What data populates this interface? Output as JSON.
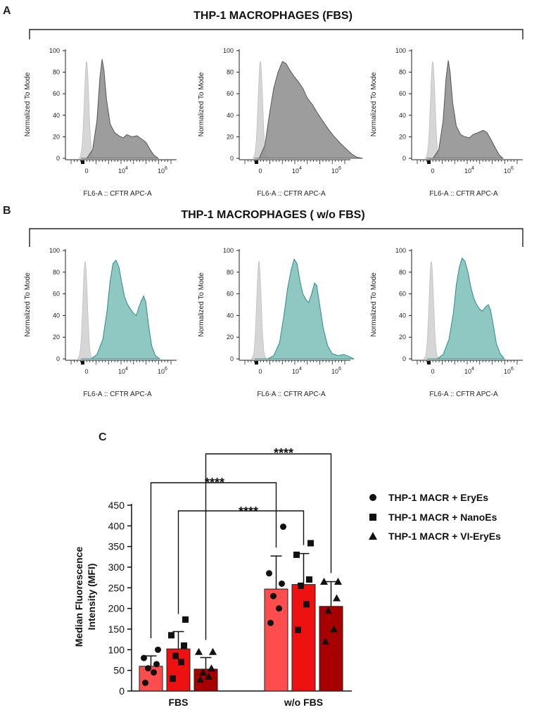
{
  "panels": {
    "A": {
      "label": "A",
      "title": "THP-1 MACROPHAGES (FBS)",
      "fill_color": "#8c8c8c",
      "stroke_color": "#555555",
      "histograms": [
        {
          "id": "a1",
          "peak_pos": 0.5,
          "profile": [
            [
              0,
              0
            ],
            [
              0.8,
              0
            ],
            [
              1.6,
              8
            ],
            [
              2.2,
              35
            ],
            [
              2.6,
              75
            ],
            [
              2.9,
              92
            ],
            [
              3.15,
              82
            ],
            [
              3.5,
              55
            ],
            [
              4.0,
              32
            ],
            [
              4.6,
              24
            ],
            [
              5.2,
              21
            ],
            [
              5.8,
              19
            ],
            [
              6.3,
              22
            ],
            [
              7.0,
              20
            ],
            [
              7.7,
              21
            ],
            [
              8.3,
              18
            ],
            [
              8.9,
              15
            ],
            [
              9.5,
              8
            ],
            [
              10.0,
              3
            ],
            [
              10.6,
              0
            ]
          ]
        },
        {
          "id": "a2",
          "peak_pos": 0.5,
          "profile": [
            [
              0,
              0
            ],
            [
              0.6,
              0
            ],
            [
              1.4,
              12
            ],
            [
              2.0,
              40
            ],
            [
              2.6,
              65
            ],
            [
              3.2,
              80
            ],
            [
              3.8,
              90
            ],
            [
              4.3,
              88
            ],
            [
              4.8,
              82
            ],
            [
              5.4,
              76
            ],
            [
              6.0,
              71
            ],
            [
              6.6,
              65
            ],
            [
              7.2,
              56
            ],
            [
              7.9,
              50
            ],
            [
              8.6,
              42
            ],
            [
              9.3,
              35
            ],
            [
              10.0,
              28
            ],
            [
              10.8,
              21
            ],
            [
              11.6,
              15
            ],
            [
              12.5,
              9
            ],
            [
              13.3,
              4
            ],
            [
              14.0,
              1
            ],
            [
              14.8,
              0
            ]
          ]
        },
        {
          "id": "a3",
          "peak_pos": 0.5,
          "profile": [
            [
              0,
              0
            ],
            [
              0.8,
              0
            ],
            [
              1.6,
              8
            ],
            [
              2.2,
              35
            ],
            [
              2.6,
              75
            ],
            [
              2.9,
              91
            ],
            [
              3.15,
              80
            ],
            [
              3.5,
              52
            ],
            [
              4.0,
              30
            ],
            [
              4.6,
              22
            ],
            [
              5.2,
              20
            ],
            [
              5.8,
              19
            ],
            [
              6.3,
              22
            ],
            [
              7.0,
              24
            ],
            [
              7.7,
              26
            ],
            [
              8.2,
              24
            ],
            [
              8.8,
              17
            ],
            [
              9.4,
              9
            ],
            [
              9.9,
              3
            ],
            [
              10.4,
              0
            ]
          ]
        }
      ]
    },
    "B": {
      "label": "B",
      "title": "THP-1 MACROPHAGES ( w/o FBS)",
      "fill_color": "#7bbdb7",
      "stroke_color": "#2e8b85",
      "histograms": [
        {
          "id": "b1",
          "peak_pos": 0.5,
          "profile": [
            [
              0,
              0
            ],
            [
              1.4,
              0
            ],
            [
              2.2,
              4
            ],
            [
              3.0,
              18
            ],
            [
              3.6,
              45
            ],
            [
              4.0,
              72
            ],
            [
              4.4,
              88
            ],
            [
              4.8,
              91
            ],
            [
              5.2,
              85
            ],
            [
              5.6,
              70
            ],
            [
              6.0,
              57
            ],
            [
              6.4,
              50
            ],
            [
              6.8,
              46
            ],
            [
              7.2,
              42
            ],
            [
              7.6,
              40
            ],
            [
              7.9,
              47
            ],
            [
              8.3,
              54
            ],
            [
              8.6,
              58
            ],
            [
              8.9,
              52
            ],
            [
              9.3,
              30
            ],
            [
              9.7,
              12
            ],
            [
              10.2,
              3
            ],
            [
              10.8,
              0
            ]
          ]
        },
        {
          "id": "b2",
          "peak_pos": 0.5,
          "profile": [
            [
              0,
              0
            ],
            [
              1.8,
              0
            ],
            [
              2.6,
              3
            ],
            [
              3.4,
              15
            ],
            [
              4.0,
              40
            ],
            [
              4.5,
              65
            ],
            [
              5.0,
              82
            ],
            [
              5.4,
              92
            ],
            [
              5.8,
              88
            ],
            [
              6.2,
              72
            ],
            [
              6.6,
              60
            ],
            [
              7.0,
              55
            ],
            [
              7.4,
              52
            ],
            [
              7.8,
              60
            ],
            [
              8.2,
              70
            ],
            [
              8.5,
              68
            ],
            [
              8.9,
              50
            ],
            [
              9.4,
              28
            ],
            [
              10.0,
              12
            ],
            [
              10.6,
              5
            ],
            [
              11.4,
              3
            ],
            [
              12.2,
              4
            ],
            [
              13.0,
              2
            ],
            [
              13.6,
              0
            ]
          ]
        },
        {
          "id": "b3",
          "peak_pos": 0.5,
          "profile": [
            [
              0,
              0
            ],
            [
              1.4,
              0
            ],
            [
              2.2,
              4
            ],
            [
              3.0,
              18
            ],
            [
              3.6,
              42
            ],
            [
              4.0,
              68
            ],
            [
              4.4,
              84
            ],
            [
              4.8,
              93
            ],
            [
              5.2,
              90
            ],
            [
              5.6,
              80
            ],
            [
              6.0,
              66
            ],
            [
              6.4,
              56
            ],
            [
              6.8,
              50
            ],
            [
              7.2,
              46
            ],
            [
              7.6,
              44
            ],
            [
              8.0,
              48
            ],
            [
              8.4,
              50
            ],
            [
              8.7,
              45
            ],
            [
              9.1,
              30
            ],
            [
              9.5,
              14
            ],
            [
              10.0,
              5
            ],
            [
              10.6,
              0
            ]
          ]
        }
      ]
    },
    "shared": {
      "y_axis_label": "Normalized To Mode",
      "y_ticks": [
        "0",
        "20",
        "40",
        "60",
        "80",
        "100"
      ],
      "x_axis_label": "FL6-A :: CFTR APC-A",
      "x_ticks": [
        {
          "base": "0",
          "exp": ""
        },
        {
          "base": "10",
          "exp": "4"
        },
        {
          "base": "10",
          "exp": "6"
        }
      ],
      "control_color": "#d4d4d4"
    }
  },
  "chart_data": {
    "type": "bar",
    "panel_label": "C",
    "categories": [
      "FBS",
      "w/o FBS"
    ],
    "ylabel_line1": "Median Fluorescence",
    "ylabel_line2": "Intensity (MFI)",
    "ylim": [
      0,
      450
    ],
    "y_ticks": [
      0,
      50,
      100,
      150,
      200,
      250,
      300,
      350,
      400,
      450
    ],
    "series": [
      {
        "name": "THP-1 MACR + EryEs",
        "marker": "circle",
        "color": "#ff4d4d",
        "values": [
          60,
          247
        ],
        "errors": [
          25,
          80
        ],
        "points": [
          [
            20,
            45,
            55,
            65,
            80,
            100
          ],
          [
            165,
            200,
            230,
            260,
            285,
            398
          ]
        ]
      },
      {
        "name": "THP-1 MACR + NanoEs",
        "marker": "square",
        "color": "#ee1111",
        "values": [
          102,
          258
        ],
        "errors": [
          42,
          75
        ],
        "points": [
          [
            30,
            70,
            85,
            110,
            135,
            173
          ],
          [
            148,
            210,
            255,
            270,
            330,
            358
          ]
        ]
      },
      {
        "name": "THP-1 MACR + VI-EryEs",
        "marker": "triangle",
        "color": "#a80000",
        "values": [
          53,
          205
        ],
        "errors": [
          28,
          60
        ],
        "points": [
          [
            28,
            35,
            45,
            55,
            95,
            95
          ],
          [
            120,
            150,
            195,
            225,
            265,
            265
          ]
        ]
      }
    ],
    "significance": [
      {
        "label": "****",
        "from": "FBS EryEs",
        "to": "w/o FBS EryEs"
      },
      {
        "label": "****",
        "from": "FBS NanoEs",
        "to": "w/o FBS NanoEs"
      },
      {
        "label": "****",
        "from": "FBS VI-EryEs",
        "to": "w/o FBS VI-EryEs"
      }
    ]
  }
}
